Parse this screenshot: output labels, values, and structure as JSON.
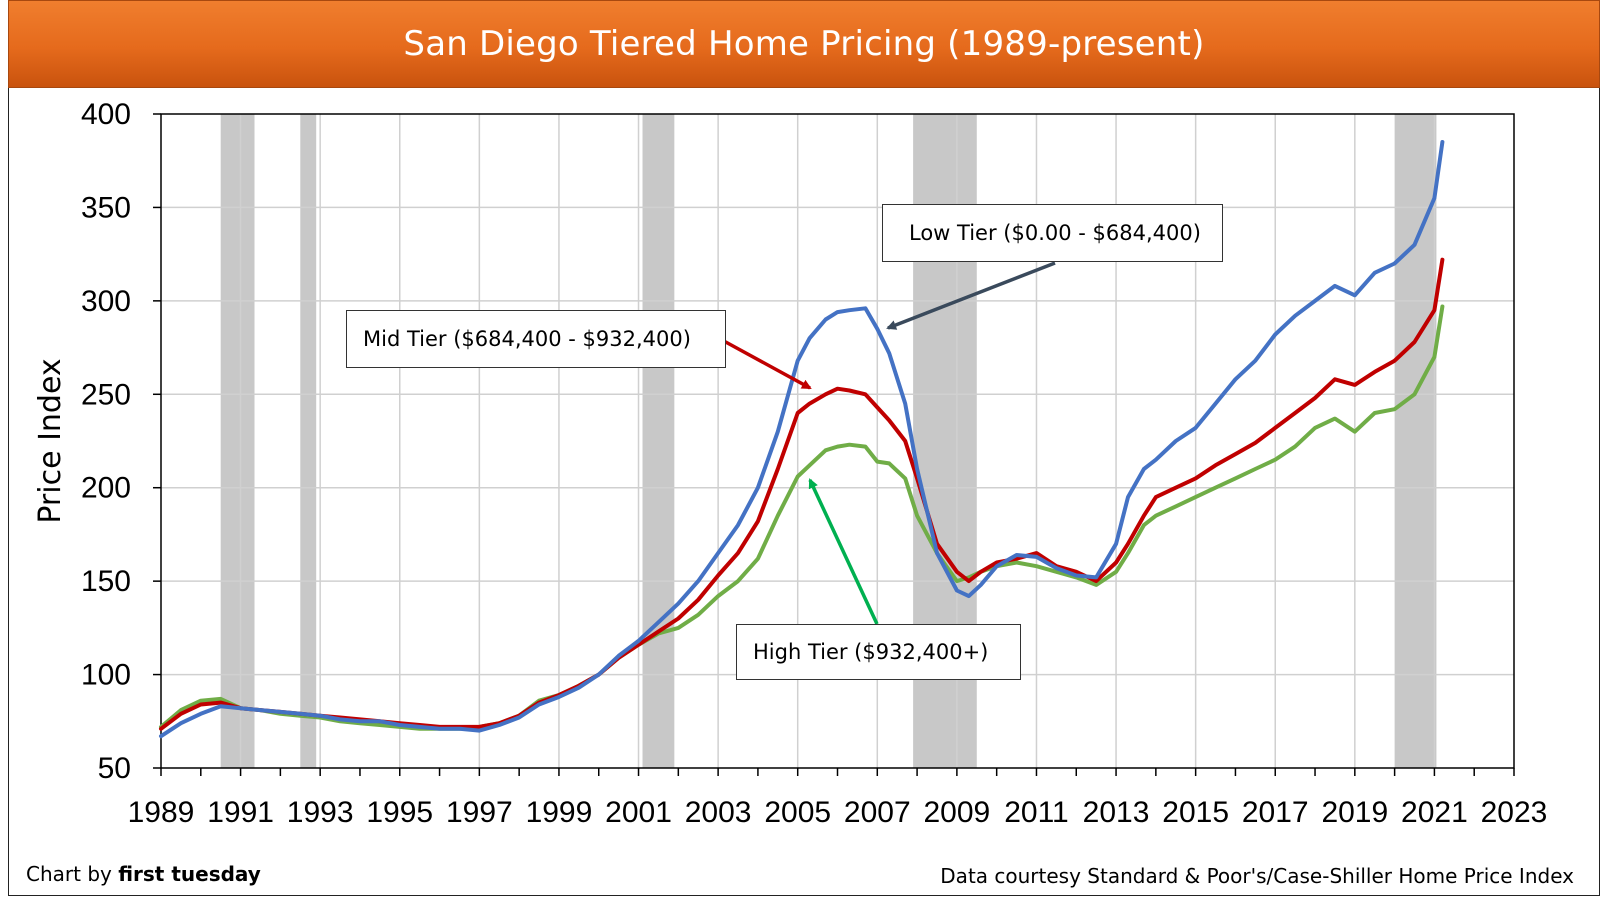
{
  "title": "San Diego Tiered Home Pricing (1989-present)",
  "footer": {
    "credit_prefix": "Chart by ",
    "credit_brand": "first tuesday",
    "source": "Data courtesy Standard & Poor's/Case-Shiller Home Price Index"
  },
  "annotations": {
    "low": "Low Tier ($0.00 - $684,400)",
    "mid": "Mid Tier ($684,400 - $932,400)",
    "high": "High Tier ($932,400+)"
  },
  "colors": {
    "low": "#4472c4",
    "mid": "#c00000",
    "high": "#70ad47",
    "recession": "#c8c8c8",
    "grid": "#d0d0d0",
    "arrow_low": "#3a4a5c",
    "arrow_mid": "#c00000",
    "arrow_high": "#00b050"
  },
  "chart_data": {
    "type": "line",
    "title": "San Diego Tiered Home Pricing (1989-present)",
    "xlabel": "",
    "ylabel": "Price Index",
    "xlim": [
      1989,
      2023
    ],
    "ylim": [
      50,
      400
    ],
    "xticks": [
      1989,
      1991,
      1993,
      1995,
      1997,
      1999,
      2001,
      2003,
      2005,
      2007,
      2009,
      2011,
      2013,
      2015,
      2017,
      2019,
      2021,
      2023
    ],
    "yticks": [
      50,
      100,
      150,
      200,
      250,
      300,
      350,
      400
    ],
    "grid": true,
    "recession_shading": [
      [
        1990.5,
        1991.35
      ],
      [
        1992.5,
        1992.9
      ],
      [
        2001.1,
        2001.9
      ],
      [
        2007.9,
        2009.5
      ],
      [
        2020.0,
        2021.05
      ]
    ],
    "series": [
      {
        "name": "Low Tier ($0.00 - $684,400)",
        "color_key": "low",
        "x": [
          1989,
          1989.5,
          1990,
          1990.5,
          1991,
          1991.5,
          1992,
          1992.5,
          1993,
          1993.5,
          1994,
          1994.5,
          1995,
          1995.5,
          1996,
          1996.5,
          1997,
          1997.5,
          1998,
          1998.5,
          1999,
          1999.5,
          2000,
          2000.5,
          2001,
          2001.5,
          2002,
          2002.5,
          2003,
          2003.5,
          2004,
          2004.5,
          2005,
          2005.3,
          2005.7,
          2006,
          2006.3,
          2006.7,
          2007,
          2007.3,
          2007.7,
          2008,
          2008.5,
          2009,
          2009.3,
          2009.6,
          2010,
          2010.5,
          2011,
          2011.5,
          2012,
          2012.5,
          2013,
          2013.3,
          2013.7,
          2014,
          2014.5,
          2015,
          2015.5,
          2016,
          2016.5,
          2017,
          2017.5,
          2018,
          2018.5,
          2019,
          2019.5,
          2020,
          2020.5,
          2021,
          2021.2
        ],
        "y": [
          67,
          74,
          79,
          83,
          82,
          81,
          80,
          79,
          78,
          76,
          75,
          75,
          73,
          72,
          71,
          71,
          70,
          73,
          77,
          84,
          88,
          93,
          100,
          110,
          118,
          128,
          138,
          150,
          165,
          180,
          200,
          230,
          268,
          280,
          290,
          294,
          295,
          296,
          285,
          272,
          245,
          210,
          165,
          145,
          142,
          148,
          158,
          164,
          163,
          157,
          153,
          152,
          170,
          195,
          210,
          215,
          225,
          232,
          245,
          258,
          268,
          282,
          292,
          300,
          308,
          303,
          315,
          320,
          330,
          355,
          385
        ]
      },
      {
        "name": "Mid Tier ($684,400 - $932,400)",
        "color_key": "mid",
        "x": [
          1989,
          1989.5,
          1990,
          1990.5,
          1991,
          1991.5,
          1992,
          1992.5,
          1993,
          1993.5,
          1994,
          1994.5,
          1995,
          1995.5,
          1996,
          1996.5,
          1997,
          1997.5,
          1998,
          1998.5,
          1999,
          1999.5,
          2000,
          2000.5,
          2001,
          2001.5,
          2002,
          2002.5,
          2003,
          2003.5,
          2004,
          2004.5,
          2005,
          2005.3,
          2005.7,
          2006,
          2006.3,
          2006.7,
          2007,
          2007.3,
          2007.7,
          2008,
          2008.5,
          2009,
          2009.3,
          2009.6,
          2010,
          2010.5,
          2011,
          2011.5,
          2012,
          2012.5,
          2013,
          2013.3,
          2013.7,
          2014,
          2014.5,
          2015,
          2015.5,
          2016,
          2016.5,
          2017,
          2017.5,
          2018,
          2018.5,
          2019,
          2019.5,
          2020,
          2020.5,
          2021,
          2021.2
        ],
        "y": [
          71,
          79,
          84,
          85,
          82,
          81,
          80,
          79,
          78,
          77,
          76,
          75,
          74,
          73,
          72,
          72,
          72,
          74,
          78,
          85,
          89,
          94,
          100,
          109,
          116,
          123,
          130,
          140,
          153,
          165,
          182,
          210,
          240,
          245,
          250,
          253,
          252,
          250,
          243,
          236,
          225,
          205,
          170,
          155,
          150,
          155,
          160,
          162,
          165,
          158,
          155,
          150,
          160,
          170,
          185,
          195,
          200,
          205,
          212,
          218,
          224,
          232,
          240,
          248,
          258,
          255,
          262,
          268,
          278,
          295,
          322
        ]
      },
      {
        "name": "High Tier ($932,400+)",
        "color_key": "high",
        "x": [
          1989,
          1989.5,
          1990,
          1990.5,
          1991,
          1991.5,
          1992,
          1992.5,
          1993,
          1993.5,
          1994,
          1994.5,
          1995,
          1995.5,
          1996,
          1996.5,
          1997,
          1997.5,
          1998,
          1998.5,
          1999,
          1999.5,
          2000,
          2000.5,
          2001,
          2001.5,
          2002,
          2002.5,
          2003,
          2003.5,
          2004,
          2004.5,
          2005,
          2005.3,
          2005.7,
          2006,
          2006.3,
          2006.7,
          2007,
          2007.3,
          2007.7,
          2008,
          2008.5,
          2009,
          2009.3,
          2009.6,
          2010,
          2010.5,
          2011,
          2011.5,
          2012,
          2012.5,
          2013,
          2013.3,
          2013.7,
          2014,
          2014.5,
          2015,
          2015.5,
          2016,
          2016.5,
          2017,
          2017.5,
          2018,
          2018.5,
          2019,
          2019.5,
          2020,
          2020.5,
          2021,
          2021.2
        ],
        "y": [
          72,
          81,
          86,
          87,
          82,
          81,
          79,
          78,
          77,
          75,
          74,
          73,
          72,
          71,
          71,
          71,
          72,
          74,
          78,
          86,
          89,
          94,
          100,
          109,
          116,
          122,
          125,
          132,
          142,
          150,
          162,
          185,
          206,
          212,
          220,
          222,
          223,
          222,
          214,
          213,
          205,
          185,
          165,
          150,
          152,
          155,
          158,
          160,
          158,
          155,
          152,
          148,
          155,
          165,
          180,
          185,
          190,
          195,
          200,
          205,
          210,
          215,
          222,
          232,
          237,
          230,
          240,
          242,
          250,
          270,
          297
        ]
      }
    ]
  }
}
